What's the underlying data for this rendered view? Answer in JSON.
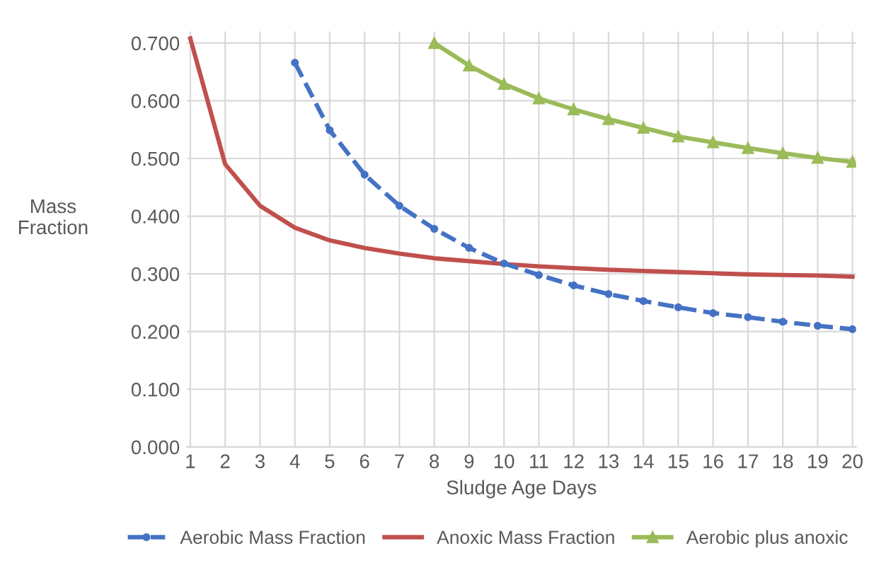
{
  "chart_data": {
    "type": "line",
    "xlabel": "Sludge Age Days",
    "ylabel": "Mass\nFraction",
    "categories": [
      "1",
      "2",
      "3",
      "4",
      "5",
      "6",
      "7",
      "8",
      "9",
      "10",
      "11",
      "12",
      "13",
      "14",
      "15",
      "16",
      "17",
      "18",
      "19",
      "20"
    ],
    "series": [
      {
        "name": "Aerobic Mass Fraction",
        "color": "#4472c4",
        "marker": "circle",
        "line_style": "dashed",
        "values": [
          null,
          null,
          null,
          0.666,
          0.549,
          0.472,
          0.418,
          0.378,
          0.345,
          0.318,
          0.298,
          0.28,
          0.265,
          0.253,
          0.242,
          0.232,
          0.225,
          0.217,
          0.21,
          0.204
        ]
      },
      {
        "name": "Anoxic Mass Fraction",
        "color": "#c0504d",
        "marker": "none",
        "line_style": "solid",
        "values": [
          0.708,
          0.49,
          0.418,
          0.38,
          0.358,
          0.345,
          0.335,
          0.327,
          0.322,
          0.317,
          0.313,
          0.31,
          0.307,
          0.305,
          0.303,
          0.301,
          0.299,
          0.298,
          0.297,
          0.295
        ]
      },
      {
        "name": "Aerobic plus anoxic",
        "color": "#9bbb59",
        "marker": "triangle",
        "line_style": "solid",
        "values": [
          null,
          null,
          null,
          null,
          null,
          null,
          null,
          0.7,
          0.661,
          0.629,
          0.604,
          0.585,
          0.568,
          0.553,
          0.538,
          0.528,
          0.518,
          0.509,
          0.501,
          0.494
        ]
      }
    ],
    "ylim": [
      0,
      0.72
    ],
    "yticks": [
      {
        "value": 0,
        "label": "0.000"
      },
      {
        "value": 0.1,
        "label": "0.100"
      },
      {
        "value": 0.2,
        "label": "0.200"
      },
      {
        "value": 0.3,
        "label": "0.300"
      },
      {
        "value": 0.4,
        "label": "0.400"
      },
      {
        "value": 0.5,
        "label": "0.500"
      },
      {
        "value": 0.6,
        "label": "0.600"
      },
      {
        "value": 0.7,
        "label": "0.700"
      }
    ],
    "grid": true,
    "legend": "bottom"
  }
}
